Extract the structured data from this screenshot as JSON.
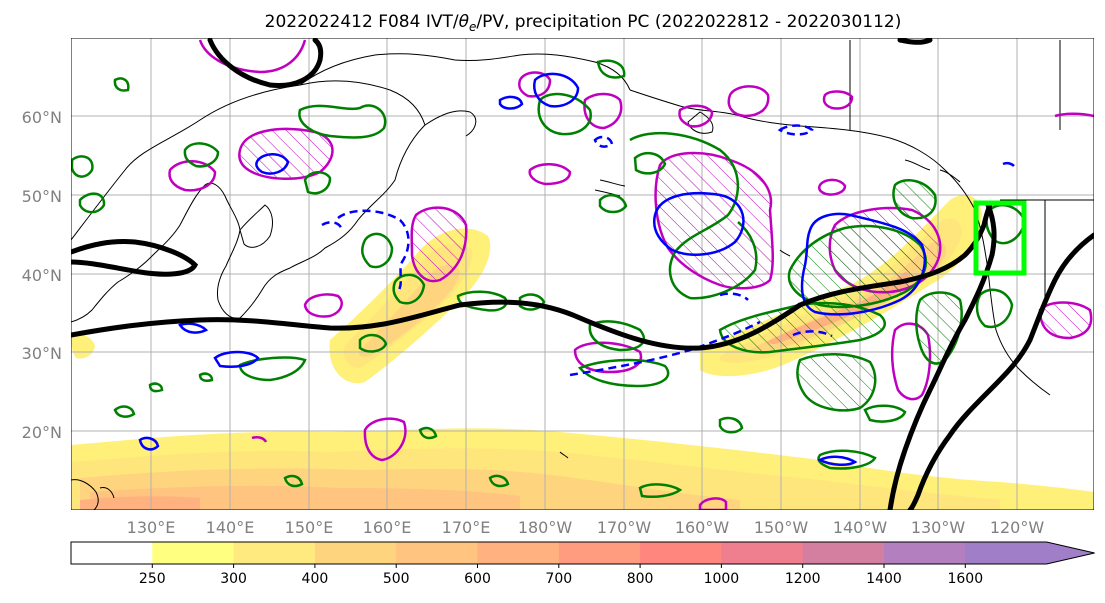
{
  "title": "2022022412 F084 IVT/θₑ/PV, precipitation PC (2022022812 - 2022030112)",
  "title_parts": {
    "prefix": "2022022412 F084 IVT/",
    "theta": "θ",
    "sub": "e",
    "suffix": "/PV, precipitation PC (2022022812 - 2022030112)"
  },
  "map": {
    "lat_labels": [
      "20°N",
      "30°N",
      "40°N",
      "50°N",
      "60°N"
    ],
    "lon_labels": [
      "130°E",
      "140°E",
      "150°E",
      "160°E",
      "170°E",
      "180°W",
      "170°W",
      "160°W",
      "150°W",
      "140°W",
      "130°W",
      "120°W"
    ],
    "grid": true
  },
  "colorbar": {
    "levels": [
      "250",
      "300",
      "400",
      "500",
      "600",
      "700",
      "800",
      "1000",
      "1200",
      "1400",
      "1600"
    ],
    "colors": [
      "#ffffff",
      "#ffff80",
      "#ffea80",
      "#ffd47f",
      "#ffc47f",
      "#ffb27f",
      "#ff9c7f",
      "#ff857f",
      "#ef7f8f",
      "#d47f9f",
      "#b47fbf",
      "#a07fc8"
    ],
    "extend": "max"
  },
  "colors": {
    "ivt_fill_low": "#fff07a",
    "ivt_fill_mid": "#ffd47f",
    "ivt_fill_high": "#ff9c7f",
    "pv_contour": "#000000",
    "theta_e_pos": "#008000",
    "theta_e_neg": "#0000ff",
    "pc_magenta": "#c000c0",
    "target_box": "#00ff00"
  }
}
